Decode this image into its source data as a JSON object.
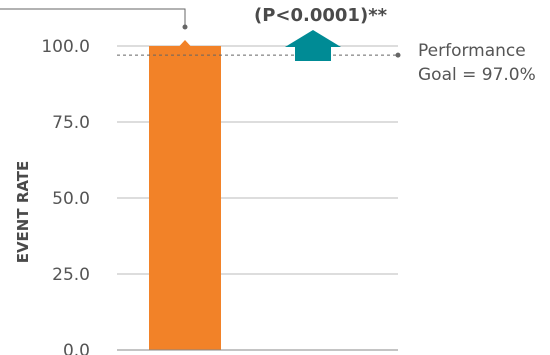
{
  "chart_data": {
    "type": "bar",
    "categories": [
      ""
    ],
    "values": [
      100.0
    ],
    "xlabel": "",
    "ylabel": "EVENT RATE",
    "ylim": [
      0,
      100
    ],
    "yticks": [
      "0.0",
      "25.0",
      "50.0",
      "75.0",
      "100.0"
    ],
    "ytick_values": [
      0,
      25,
      50,
      75,
      100
    ],
    "grid": true,
    "reference_line": {
      "value": 97.0,
      "label_line1": "Performance",
      "label_line2": "Goal = 97.0%"
    },
    "annotation": {
      "p_value": "(P<0.0001)**",
      "arrow": "up-arrow-icon"
    },
    "colors": {
      "bar": "#F28228",
      "arrow": "#008B95",
      "grid": "#BBBBBB",
      "reference": "#666666",
      "axis": "#888888"
    }
  }
}
